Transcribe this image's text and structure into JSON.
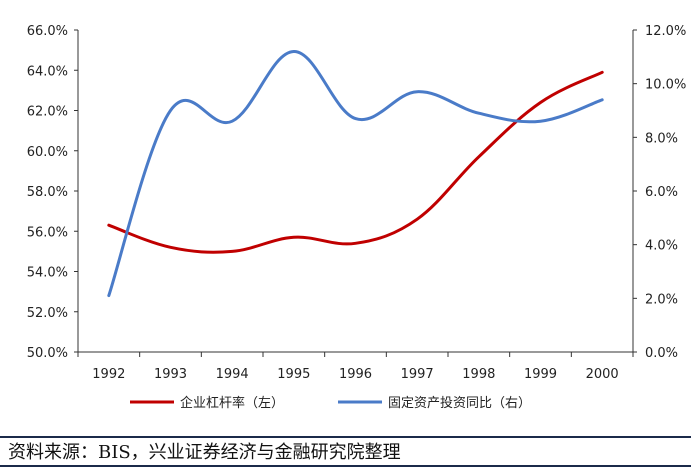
{
  "chart_data": {
    "type": "line",
    "categories": [
      "1992",
      "1993",
      "1994",
      "1995",
      "1996",
      "1997",
      "1998",
      "1999",
      "2000"
    ],
    "left_axis": {
      "ticks": [
        "50.0%",
        "52.0%",
        "54.0%",
        "56.0%",
        "58.0%",
        "60.0%",
        "62.0%",
        "64.0%",
        "66.0%"
      ],
      "ylim": [
        50,
        66
      ]
    },
    "right_axis": {
      "ticks": [
        "0.0%",
        "2.0%",
        "4.0%",
        "6.0%",
        "8.0%",
        "10.0%",
        "12.0%"
      ],
      "ylim": [
        0,
        12
      ]
    },
    "series": [
      {
        "name": "企业杠杆率（左）",
        "axis": "left",
        "color": "#c00000",
        "values": [
          56.3,
          55.2,
          55.0,
          55.7,
          55.4,
          56.6,
          59.7,
          62.4,
          63.9
        ]
      },
      {
        "name": "固定资产投资同比（右）",
        "axis": "right",
        "color": "#4a7bc8",
        "values": [
          2.1,
          9.0,
          8.6,
          11.2,
          8.7,
          9.7,
          8.9,
          8.6,
          9.4
        ]
      }
    ],
    "legend_position": "bottom",
    "grid": false
  },
  "source_text": "资料来源：BIS，兴业证券经济与金融研究院整理"
}
